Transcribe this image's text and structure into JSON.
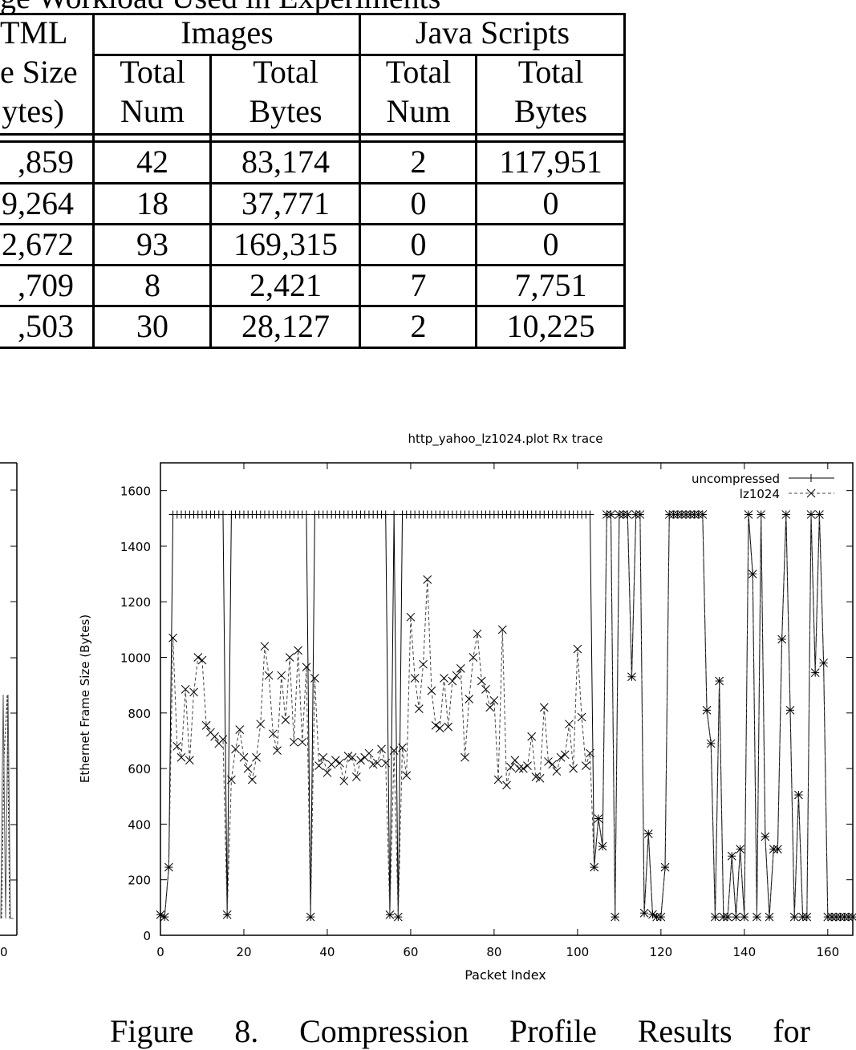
{
  "top_caption": "ge Workload Used in Experiments",
  "table": {
    "col0_header": [
      "TML",
      "e Size",
      "ytes)"
    ],
    "groups": [
      "Images",
      "Java Scripts"
    ],
    "sub_headers": [
      [
        "Total",
        "Num"
      ],
      [
        "Total",
        "Bytes"
      ],
      [
        "Total",
        "Num"
      ],
      [
        "Total",
        "Bytes"
      ]
    ],
    "rows": [
      [
        ",859",
        "42",
        "83,174",
        "2",
        "117,951"
      ],
      [
        "9,264",
        "18",
        "37,771",
        "0",
        "0"
      ],
      [
        "2,672",
        "93",
        "169,315",
        "0",
        "0"
      ],
      [
        ",709",
        "8",
        "2,421",
        "7",
        "7,751"
      ],
      [
        ",503",
        "30",
        "28,127",
        "2",
        "10,225"
      ]
    ]
  },
  "left_chart": {
    "visible_x_tick": "0"
  },
  "chart_data": {
    "type": "line",
    "title": "http_yahoo_lz1024.plot Rx trace",
    "xlabel": "Packet Index",
    "ylabel": "Ethernet Frame Size (Bytes)",
    "xlim": [
      0,
      166
    ],
    "ylim": [
      0,
      1700
    ],
    "x_start": 0,
    "x_step": 1,
    "x_ticks": [
      "0",
      "20",
      "40",
      "60",
      "80",
      "100",
      "120",
      "140",
      "160"
    ],
    "y_ticks": [
      "0",
      "200",
      "400",
      "600",
      "800",
      "1000",
      "1200",
      "1400",
      "1600"
    ],
    "legend_position": "top-right",
    "series": [
      {
        "name": "uncompressed",
        "style": "solid",
        "marker": "plus",
        "color": "#000000",
        "values": [
          74,
          66,
          245,
          1514,
          1514,
          1514,
          1514,
          1514,
          1514,
          1514,
          1514,
          1514,
          1514,
          1514,
          1514,
          1514,
          74,
          1514,
          1514,
          1514,
          1514,
          1514,
          1514,
          1514,
          1514,
          1514,
          1514,
          1514,
          1514,
          1514,
          1514,
          1514,
          1514,
          1514,
          1514,
          1514,
          66,
          1514,
          1514,
          1514,
          1514,
          1514,
          1514,
          1514,
          1514,
          1514,
          1514,
          1514,
          1514,
          1514,
          1514,
          1514,
          1514,
          1514,
          1514,
          74,
          1514,
          66,
          1514,
          1514,
          1514,
          1514,
          1514,
          1514,
          1514,
          1514,
          1514,
          1514,
          1514,
          1514,
          1514,
          1514,
          1514,
          1514,
          1514,
          1514,
          1514,
          1514,
          1514,
          1514,
          1514,
          1514,
          1514,
          1514,
          1514,
          1514,
          1514,
          1514,
          1514,
          1514,
          1514,
          1514,
          1514,
          1514,
          1514,
          1514,
          1514,
          1514,
          1514,
          1514,
          1514,
          1514,
          1514,
          1514,
          245,
          420,
          320,
          1514,
          1514,
          66,
          1514,
          1514,
          1514,
          930,
          1514,
          1514,
          80,
          365,
          75,
          66,
          66,
          245,
          1514,
          1514,
          1514,
          1514,
          1514,
          1514,
          1514,
          1514,
          1514,
          810,
          690,
          66,
          915,
          66,
          66,
          285,
          66,
          310,
          66,
          1514,
          1300,
          66,
          1514,
          355,
          66,
          310,
          310,
          1065,
          1514,
          810,
          66,
          505,
          66,
          66,
          1514,
          945,
          1514,
          980,
          66,
          66,
          66,
          66,
          66,
          66,
          66
        ]
      },
      {
        "name": "lz1024",
        "style": "dashed",
        "marker": "cross",
        "color": "#333333",
        "values": [
          74,
          66,
          245,
          1070,
          680,
          640,
          885,
          630,
          875,
          1000,
          990,
          755,
          730,
          715,
          690,
          705,
          74,
          560,
          670,
          740,
          640,
          600,
          560,
          640,
          760,
          1040,
          935,
          725,
          665,
          935,
          775,
          1000,
          695,
          1025,
          695,
          965,
          66,
          925,
          610,
          640,
          585,
          615,
          630,
          620,
          555,
          645,
          640,
          570,
          630,
          640,
          655,
          615,
          620,
          670,
          620,
          74,
          665,
          66,
          675,
          575,
          1145,
          925,
          815,
          975,
          1280,
          880,
          755,
          745,
          925,
          750,
          915,
          935,
          960,
          640,
          850,
          1000,
          1085,
          915,
          885,
          820,
          845,
          560,
          1100,
          540,
          605,
          630,
          600,
          600,
          610,
          715,
          570,
          565,
          820,
          625,
          615,
          590,
          640,
          650,
          760,
          600,
          1030,
          785,
          610,
          655,
          245,
          420,
          320,
          1514,
          1514,
          66,
          1514,
          1514,
          1514,
          930,
          1514,
          1514,
          80,
          365,
          75,
          66,
          66,
          245,
          1514,
          1514,
          1514,
          1514,
          1514,
          1514,
          1514,
          1514,
          1514,
          810,
          690,
          66,
          915,
          66,
          66,
          285,
          66,
          310,
          66,
          1514,
          1300,
          66,
          1514,
          355,
          66,
          310,
          310,
          1065,
          1514,
          810,
          66,
          505,
          66,
          66,
          1514,
          945,
          1514,
          980,
          66,
          66,
          66,
          66,
          66,
          66,
          66
        ]
      }
    ]
  },
  "bottom_caption": "Figure 8. Compression Profile Results for"
}
